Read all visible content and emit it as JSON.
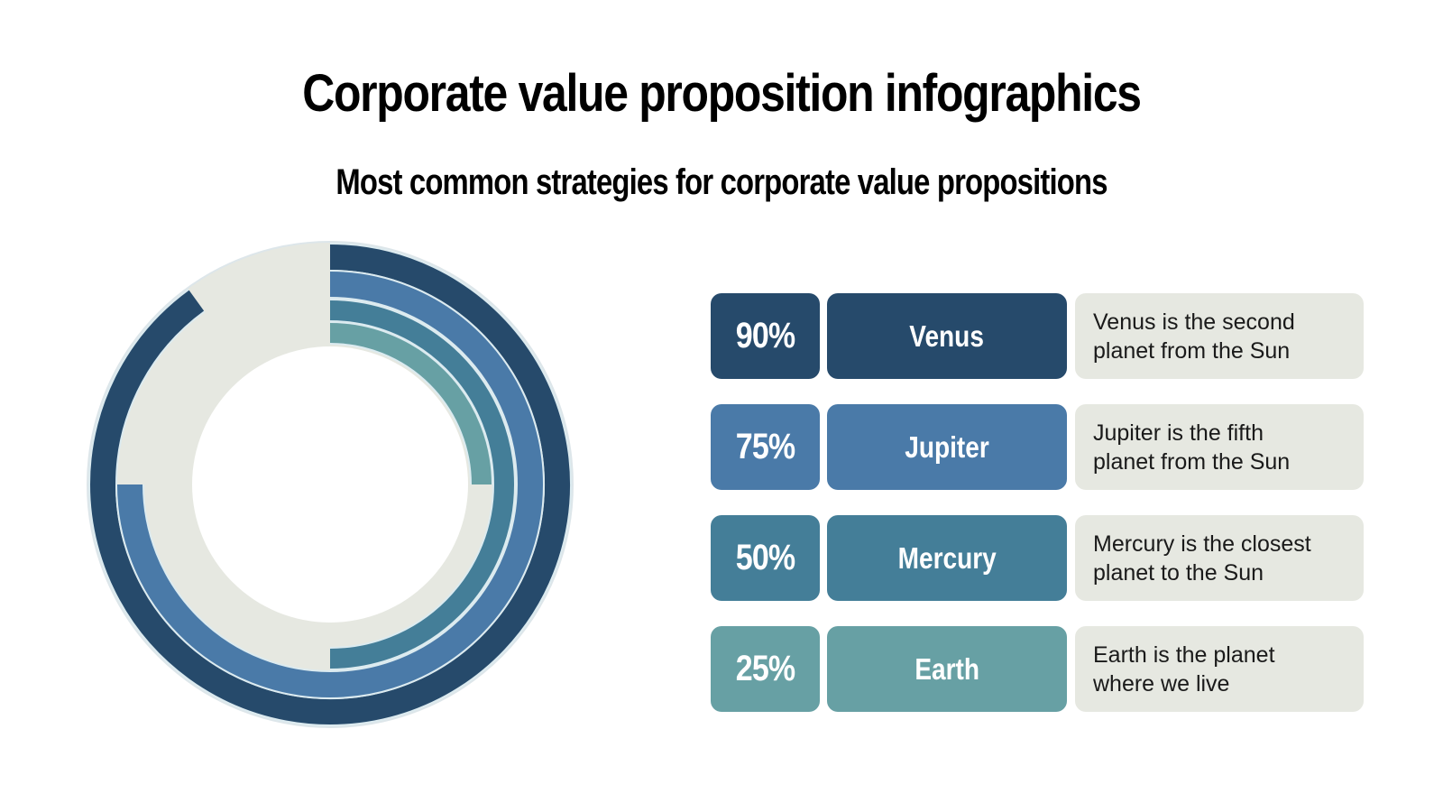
{
  "header": {
    "title": "Corporate value proposition infographics",
    "subtitle": "Most common strategies for corporate value propositions"
  },
  "rows": [
    {
      "percent": "90%",
      "name": "Venus",
      "description": "Venus is the second\nplanet from the Sun",
      "color": "#264a6b"
    },
    {
      "percent": "75%",
      "name": "Jupiter",
      "description": "Jupiter is the fifth\nplanet from the Sun",
      "color": "#4a7aa8"
    },
    {
      "percent": "50%",
      "name": "Mercury",
      "description": "Mercury is the closest\nplanet to the Sun",
      "color": "#447e98"
    },
    {
      "percent": "25%",
      "name": "Earth",
      "description": "Earth is the planet\nwhere we live",
      "color": "#67a0a4"
    }
  ],
  "colors": {
    "track": "#e6e8e1",
    "background": "#ffffff",
    "description_box": "#e6e8e1"
  },
  "chart_data": {
    "type": "radial-bar",
    "title": "Most common strategies for corporate value propositions",
    "categories": [
      "Venus",
      "Jupiter",
      "Mercury",
      "Earth"
    ],
    "values": [
      90,
      75,
      50,
      25
    ],
    "unit": "%",
    "max": 100,
    "start_angle": "12 o'clock, clockwise",
    "colors": [
      "#264a6b",
      "#4a7aa8",
      "#447e98",
      "#67a0a4"
    ],
    "legend_position": "right (table rows)"
  }
}
